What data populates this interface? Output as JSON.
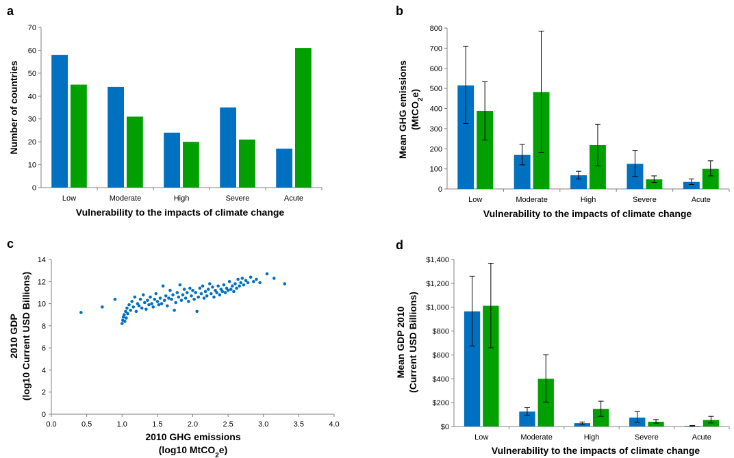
{
  "colors": {
    "series1": "#0070C0",
    "series2": "#00A000",
    "axis": "#7f7f7f",
    "errorbar": "#000000"
  },
  "chart_data": [
    {
      "panel": "a",
      "type": "bar",
      "categories": [
        "Low",
        "Moderate",
        "High",
        "Severe",
        "Acute"
      ],
      "series": [
        {
          "values": [
            58,
            44,
            24,
            35,
            17
          ]
        },
        {
          "values": [
            45,
            31,
            20,
            21,
            61
          ]
        }
      ],
      "ylim": [
        0,
        70
      ],
      "yticks": [
        "0",
        "10",
        "20",
        "30",
        "40",
        "50",
        "60",
        "70"
      ],
      "xlabel": "Vulnerability to the impacts of climate change",
      "ylabel": "Number of countries"
    },
    {
      "panel": "b",
      "type": "bar",
      "categories": [
        "Low",
        "Moderate",
        "High",
        "Severe",
        "Acute"
      ],
      "series": [
        {
          "values": [
            515,
            170,
            68,
            125,
            35
          ],
          "err_low": [
            325,
            120,
            50,
            62,
            22
          ],
          "err_high": [
            710,
            222,
            88,
            192,
            50
          ]
        },
        {
          "values": [
            388,
            482,
            218,
            48,
            100
          ],
          "err_low": [
            243,
            182,
            115,
            32,
            65
          ],
          "err_high": [
            533,
            785,
            322,
            65,
            140
          ]
        }
      ],
      "ylim": [
        0,
        800
      ],
      "yticks": [
        "0",
        "100",
        "200",
        "300",
        "400",
        "500",
        "600",
        "700",
        "800"
      ],
      "xlabel": "Vulnerability to the impacts of climate change",
      "ylabel": "Mean GHG emissions",
      "ylabel2_pre": "(MtCO",
      "ylabel2_sub": "2",
      "ylabel2_post": "e)"
    },
    {
      "panel": "c",
      "type": "scatter",
      "xlim": [
        0,
        4
      ],
      "ylim": [
        0,
        14
      ],
      "xticks": [
        "0.0",
        "0.5",
        "1.0",
        "1.5",
        "2.0",
        "2.5",
        "3.0",
        "3.5",
        "4.0"
      ],
      "yticks": [
        "0",
        "2",
        "4",
        "6",
        "8",
        "10",
        "12",
        "14"
      ],
      "xlabel": "2010 GHG emissions",
      "xlabel2_pre": "(log10 MtCO",
      "xlabel2_sub": "2",
      "xlabel2_post": "e)",
      "ylabel": "2010 GDP",
      "ylabel2": "(log10 Current USD Billions)",
      "points": [
        [
          0.42,
          9.2
        ],
        [
          0.72,
          9.7
        ],
        [
          0.9,
          10.4
        ],
        [
          1.0,
          8.2
        ],
        [
          1.01,
          8.5
        ],
        [
          1.02,
          8.8
        ],
        [
          1.03,
          9.0
        ],
        [
          1.04,
          8.4
        ],
        [
          1.05,
          9.3
        ],
        [
          1.06,
          8.7
        ],
        [
          1.07,
          9.6
        ],
        [
          1.08,
          9.1
        ],
        [
          1.1,
          9.9
        ],
        [
          1.12,
          9.4
        ],
        [
          1.14,
          10.2
        ],
        [
          1.16,
          9.7
        ],
        [
          1.18,
          10.6
        ],
        [
          1.2,
          9.3
        ],
        [
          1.22,
          10.0
        ],
        [
          1.24,
          9.8
        ],
        [
          1.26,
          10.4
        ],
        [
          1.28,
          9.6
        ],
        [
          1.3,
          10.8
        ],
        [
          1.32,
          10.1
        ],
        [
          1.34,
          9.5
        ],
        [
          1.36,
          10.3
        ],
        [
          1.38,
          9.9
        ],
        [
          1.4,
          10.6
        ],
        [
          1.42,
          10.0
        ],
        [
          1.44,
          9.7
        ],
        [
          1.46,
          10.4
        ],
        [
          1.48,
          10.9
        ],
        [
          1.5,
          10.2
        ],
        [
          1.52,
          9.9
        ],
        [
          1.54,
          10.5
        ],
        [
          1.56,
          10.0
        ],
        [
          1.58,
          11.6
        ],
        [
          1.6,
          10.3
        ],
        [
          1.62,
          10.7
        ],
        [
          1.64,
          9.8
        ],
        [
          1.66,
          10.5
        ],
        [
          1.68,
          11.2
        ],
        [
          1.7,
          10.4
        ],
        [
          1.72,
          10.8
        ],
        [
          1.74,
          9.4
        ],
        [
          1.76,
          10.1
        ],
        [
          1.78,
          11.0
        ],
        [
          1.8,
          10.6
        ],
        [
          1.82,
          11.7
        ],
        [
          1.84,
          10.3
        ],
        [
          1.86,
          10.8
        ],
        [
          1.88,
          11.3
        ],
        [
          1.9,
          10.5
        ],
        [
          1.92,
          11.0
        ],
        [
          1.94,
          10.2
        ],
        [
          1.96,
          11.4
        ],
        [
          1.98,
          10.7
        ],
        [
          2.0,
          11.2
        ],
        [
          2.02,
          10.4
        ],
        [
          2.04,
          11.0
        ],
        [
          2.06,
          9.3
        ],
        [
          2.08,
          10.6
        ],
        [
          2.1,
          11.4
        ],
        [
          2.12,
          10.9
        ],
        [
          2.14,
          11.6
        ],
        [
          2.16,
          10.5
        ],
        [
          2.18,
          11.1
        ],
        [
          2.2,
          10.7
        ],
        [
          2.22,
          11.3
        ],
        [
          2.24,
          11.8
        ],
        [
          2.26,
          10.9
        ],
        [
          2.28,
          11.5
        ],
        [
          2.3,
          10.6
        ],
        [
          2.32,
          11.2
        ],
        [
          2.34,
          11.0
        ],
        [
          2.36,
          11.6
        ],
        [
          2.38,
          10.8
        ],
        [
          2.4,
          11.3
        ],
        [
          2.42,
          11.1
        ],
        [
          2.44,
          11.7
        ],
        [
          2.46,
          11.0
        ],
        [
          2.48,
          11.4
        ],
        [
          2.5,
          11.2
        ],
        [
          2.52,
          12.0
        ],
        [
          2.54,
          11.3
        ],
        [
          2.56,
          11.6
        ],
        [
          2.58,
          11.1
        ],
        [
          2.6,
          11.8
        ],
        [
          2.62,
          11.4
        ],
        [
          2.64,
          12.2
        ],
        [
          2.66,
          11.6
        ],
        [
          2.68,
          11.9
        ],
        [
          2.7,
          12.3
        ],
        [
          2.72,
          11.7
        ],
        [
          2.75,
          12.1
        ],
        [
          2.78,
          11.9
        ],
        [
          2.82,
          12.4
        ],
        [
          2.86,
          12.0
        ],
        [
          2.9,
          12.2
        ],
        [
          2.95,
          11.9
        ],
        [
          3.05,
          12.7
        ],
        [
          3.15,
          12.3
        ],
        [
          3.3,
          11.8
        ]
      ]
    },
    {
      "panel": "d",
      "type": "bar",
      "categories": [
        "Low",
        "Moderate",
        "High",
        "Severe",
        "Acute"
      ],
      "series": [
        {
          "values": [
            965,
            125,
            28,
            75,
            5
          ],
          "err_low": [
            675,
            95,
            20,
            35,
            2
          ],
          "err_high": [
            1260,
            158,
            38,
            125,
            8
          ]
        },
        {
          "values": [
            1012,
            400,
            148,
            40,
            55
          ],
          "err_low": [
            660,
            205,
            85,
            28,
            30
          ],
          "err_high": [
            1368,
            602,
            212,
            58,
            85
          ]
        }
      ],
      "ylim": [
        0,
        1400
      ],
      "yticks": [
        "$0",
        "$200",
        "$400",
        "$600",
        "$800",
        "$1,000",
        "$1,200",
        "$1,400"
      ],
      "xlabel": "Vulnerability to the impacts of climate change",
      "ylabel": "Mean GDP 2010",
      "ylabel2": "(Current USD Billions)"
    }
  ]
}
